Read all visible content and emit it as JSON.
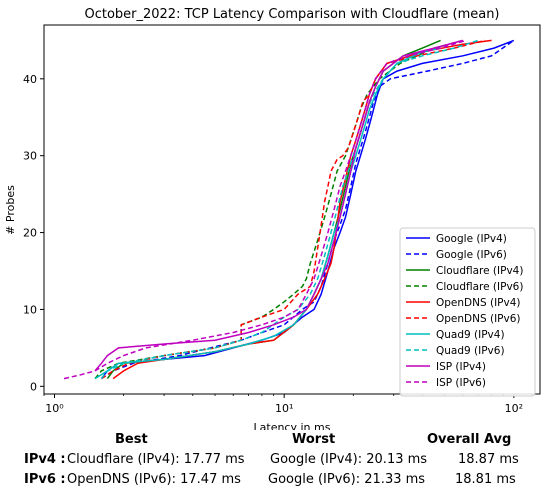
{
  "chart_data": {
    "type": "line",
    "title": "October_2022: TCP Latency Comparison with Cloudflare (mean)",
    "xlabel": "Latency in ms",
    "ylabel": "# Probes",
    "xscale": "log",
    "xlim": [
      0.9,
      130
    ],
    "ylim": [
      -1,
      47
    ],
    "x_ticks": [
      1,
      10,
      100
    ],
    "x_tick_labels": [
      "10⁰",
      "10¹",
      "10²"
    ],
    "y_ticks": [
      0,
      10,
      20,
      30,
      40
    ],
    "y_tick_labels": [
      "0",
      "10",
      "20",
      "30",
      "40"
    ],
    "grid": false,
    "legend_position": "lower-right",
    "series": [
      {
        "name": "Google (IPv4)",
        "color": "#0000ff",
        "dash": "solid",
        "points": [
          [
            1.6,
            1
          ],
          [
            1.7,
            2
          ],
          [
            1.9,
            3
          ],
          [
            3,
            3.5
          ],
          [
            4.5,
            4
          ],
          [
            6,
            5
          ],
          [
            8,
            6
          ],
          [
            10,
            7
          ],
          [
            12,
            9
          ],
          [
            13.5,
            10
          ],
          [
            14.5,
            12
          ],
          [
            15.5,
            15
          ],
          [
            16.5,
            18
          ],
          [
            17.5,
            20
          ],
          [
            18.5,
            22
          ],
          [
            19.5,
            25
          ],
          [
            20.5,
            28
          ],
          [
            21.5,
            30
          ],
          [
            22.5,
            32
          ],
          [
            23.5,
            34
          ],
          [
            24.5,
            36
          ],
          [
            25.5,
            38
          ],
          [
            27,
            40
          ],
          [
            31,
            41
          ],
          [
            40,
            42
          ],
          [
            60,
            43
          ],
          [
            82,
            44
          ],
          [
            100,
            45
          ]
        ]
      },
      {
        "name": "Google (IPv6)",
        "color": "#0000ff",
        "dash": "dashed",
        "points": [
          [
            1.6,
            1
          ],
          [
            1.8,
            2
          ],
          [
            2.2,
            3
          ],
          [
            3.5,
            4
          ],
          [
            6.5,
            6
          ],
          [
            8,
            7
          ],
          [
            10,
            8
          ],
          [
            12,
            10
          ],
          [
            13.5,
            11
          ],
          [
            14.5,
            13
          ],
          [
            15.5,
            16
          ],
          [
            16.5,
            19
          ],
          [
            17.5,
            21
          ],
          [
            18.5,
            23
          ],
          [
            19.5,
            26
          ],
          [
            20.5,
            29
          ],
          [
            21.5,
            31
          ],
          [
            22.5,
            33
          ],
          [
            23.5,
            35
          ],
          [
            24.5,
            37
          ],
          [
            26,
            39
          ],
          [
            29,
            40
          ],
          [
            42,
            41
          ],
          [
            60,
            42
          ],
          [
            80,
            43
          ],
          [
            100,
            45
          ]
        ]
      },
      {
        "name": "Cloudflare (IPv4)",
        "color": "#008000",
        "dash": "solid",
        "points": [
          [
            1.7,
            1
          ],
          [
            1.8,
            2
          ],
          [
            2,
            3
          ],
          [
            3,
            3.5
          ],
          [
            5,
            4.5
          ],
          [
            7,
            5.5
          ],
          [
            9,
            6
          ],
          [
            11,
            8
          ],
          [
            12.5,
            10
          ],
          [
            13.5,
            12
          ],
          [
            14.5,
            14
          ],
          [
            15.5,
            17
          ],
          [
            16.5,
            20
          ],
          [
            17.5,
            23
          ],
          [
            18.5,
            26
          ],
          [
            19.5,
            29
          ],
          [
            20.5,
            31
          ],
          [
            21.5,
            33
          ],
          [
            22.5,
            35
          ],
          [
            23.5,
            37
          ],
          [
            25,
            39
          ],
          [
            27,
            41
          ],
          [
            33,
            43
          ],
          [
            40,
            44
          ],
          [
            48,
            45
          ]
        ]
      },
      {
        "name": "Cloudflare (IPv6)",
        "color": "#008000",
        "dash": "dashed",
        "points": [
          [
            1.5,
            1
          ],
          [
            1.6,
            2
          ],
          [
            1.9,
            3
          ],
          [
            3,
            4
          ],
          [
            5,
            5
          ],
          [
            6.5,
            6
          ],
          [
            6.5,
            8
          ],
          [
            8,
            9
          ],
          [
            9,
            10
          ],
          [
            10,
            11
          ],
          [
            11,
            12
          ],
          [
            12,
            13
          ],
          [
            12.5,
            14
          ],
          [
            13,
            16
          ],
          [
            14,
            19
          ],
          [
            15,
            22
          ],
          [
            16,
            25
          ],
          [
            17,
            28
          ],
          [
            18.5,
            30
          ],
          [
            19.5,
            32
          ],
          [
            20.5,
            34
          ],
          [
            21.5,
            36
          ],
          [
            23,
            38
          ],
          [
            26,
            40
          ],
          [
            32,
            42
          ],
          [
            45,
            44
          ],
          [
            60,
            45
          ]
        ]
      },
      {
        "name": "OpenDNS (IPv4)",
        "color": "#ff0000",
        "dash": "solid",
        "points": [
          [
            1.8,
            1
          ],
          [
            2,
            2
          ],
          [
            2.3,
            3
          ],
          [
            3,
            3.5
          ],
          [
            5,
            4.5
          ],
          [
            7,
            5.5
          ],
          [
            9,
            6
          ],
          [
            11,
            8
          ],
          [
            12.5,
            10
          ],
          [
            14,
            12
          ],
          [
            15,
            14
          ],
          [
            16,
            16
          ],
          [
            16.5,
            18
          ],
          [
            17,
            21
          ],
          [
            17.5,
            24
          ],
          [
            18.5,
            27
          ],
          [
            19.5,
            30
          ],
          [
            20.5,
            32
          ],
          [
            21.5,
            34
          ],
          [
            22.5,
            36
          ],
          [
            23.5,
            38
          ],
          [
            25,
            40
          ],
          [
            28,
            42
          ],
          [
            40,
            43.5
          ],
          [
            60,
            44.5
          ],
          [
            80,
            45
          ]
        ]
      },
      {
        "name": "OpenDNS (IPv6)",
        "color": "#ff0000",
        "dash": "dashed",
        "points": [
          [
            1.6,
            1
          ],
          [
            1.8,
            2
          ],
          [
            2.1,
            3
          ],
          [
            3,
            4
          ],
          [
            5,
            5
          ],
          [
            6.5,
            6
          ],
          [
            6.5,
            8
          ],
          [
            8,
            9
          ],
          [
            10,
            10
          ],
          [
            11.5,
            12
          ],
          [
            13,
            13
          ],
          [
            13.5,
            15
          ],
          [
            14,
            18
          ],
          [
            14.5,
            21
          ],
          [
            15,
            24
          ],
          [
            15.5,
            26
          ],
          [
            16,
            28
          ],
          [
            17,
            29.5
          ],
          [
            18,
            30
          ],
          [
            19,
            31
          ],
          [
            20,
            33
          ],
          [
            21,
            35
          ],
          [
            22,
            37
          ],
          [
            23.5,
            38
          ],
          [
            25,
            40
          ],
          [
            28,
            42
          ],
          [
            38,
            43
          ],
          [
            55,
            44
          ],
          [
            75,
            45
          ]
        ]
      },
      {
        "name": "Quad9 (IPv4)",
        "color": "#00bfbf",
        "dash": "solid",
        "points": [
          [
            1.5,
            1
          ],
          [
            1.7,
            2
          ],
          [
            1.9,
            3
          ],
          [
            3,
            3.5
          ],
          [
            5,
            4.5
          ],
          [
            7,
            5.5
          ],
          [
            9,
            6.5
          ],
          [
            11,
            8
          ],
          [
            12.5,
            10
          ],
          [
            13.5,
            12
          ],
          [
            14.5,
            14
          ],
          [
            15.5,
            17
          ],
          [
            16.5,
            20
          ],
          [
            17.5,
            22
          ],
          [
            18.5,
            25
          ],
          [
            19.5,
            28
          ],
          [
            20.5,
            30
          ],
          [
            21.5,
            32
          ],
          [
            22.5,
            34
          ],
          [
            23.5,
            36
          ],
          [
            25,
            38
          ],
          [
            27,
            40
          ],
          [
            31,
            42
          ],
          [
            40,
            43.5
          ],
          [
            48,
            44
          ]
        ]
      },
      {
        "name": "Quad9 (IPv6)",
        "color": "#00bfbf",
        "dash": "dashed",
        "points": [
          [
            1.6,
            1
          ],
          [
            1.7,
            2
          ],
          [
            2,
            3
          ],
          [
            3,
            4
          ],
          [
            5,
            5
          ],
          [
            6.5,
            6
          ],
          [
            8,
            7
          ],
          [
            10,
            9
          ],
          [
            11.5,
            10
          ],
          [
            13,
            12
          ],
          [
            14,
            14
          ],
          [
            15,
            17
          ],
          [
            16,
            20
          ],
          [
            17,
            23
          ],
          [
            18,
            26
          ],
          [
            19,
            28
          ],
          [
            20,
            30
          ],
          [
            21,
            32
          ],
          [
            22,
            34
          ],
          [
            23,
            36
          ],
          [
            24.5,
            38
          ],
          [
            27,
            40
          ],
          [
            31,
            42
          ],
          [
            40,
            43
          ],
          [
            55,
            44
          ],
          [
            70,
            45
          ]
        ]
      },
      {
        "name": "ISP (IPv4)",
        "color": "#bf00bf",
        "dash": "solid",
        "points": [
          [
            1.5,
            2
          ],
          [
            1.6,
            3
          ],
          [
            1.7,
            4
          ],
          [
            1.9,
            5
          ],
          [
            3,
            5.5
          ],
          [
            5,
            6
          ],
          [
            7,
            7
          ],
          [
            9,
            8
          ],
          [
            11,
            9
          ],
          [
            12.5,
            10
          ],
          [
            13.5,
            12
          ],
          [
            14.5,
            14
          ],
          [
            15.5,
            16
          ],
          [
            16.5,
            19
          ],
          [
            17.5,
            22
          ],
          [
            18.5,
            25
          ],
          [
            19.5,
            28
          ],
          [
            20.5,
            31
          ],
          [
            21.5,
            33
          ],
          [
            22.5,
            35
          ],
          [
            23.5,
            37
          ],
          [
            25,
            39
          ],
          [
            27,
            41
          ],
          [
            33,
            43
          ],
          [
            45,
            44
          ],
          [
            60,
            45
          ]
        ]
      },
      {
        "name": "ISP (IPv6)",
        "color": "#bf00bf",
        "dash": "dashed",
        "points": [
          [
            1.1,
            1
          ],
          [
            1.3,
            1.5
          ],
          [
            1.5,
            2
          ],
          [
            1.7,
            3
          ],
          [
            2,
            4
          ],
          [
            2.5,
            5
          ],
          [
            4,
            6
          ],
          [
            6,
            7
          ],
          [
            8,
            8
          ],
          [
            10,
            9
          ],
          [
            11.5,
            10
          ],
          [
            12.5,
            12
          ],
          [
            13.5,
            14
          ],
          [
            14.5,
            17
          ],
          [
            15.5,
            20
          ],
          [
            16.5,
            23
          ],
          [
            17.5,
            26
          ],
          [
            18.5,
            28
          ],
          [
            19.5,
            30
          ],
          [
            20.5,
            32
          ],
          [
            21.5,
            34
          ],
          [
            22.5,
            36
          ],
          [
            23.5,
            38
          ],
          [
            25,
            40
          ],
          [
            28,
            42
          ],
          [
            35,
            43
          ],
          [
            48,
            44
          ],
          [
            62,
            45
          ]
        ]
      }
    ]
  },
  "stats": {
    "headers": {
      "best": "Best",
      "worst": "Worst",
      "avg": "Overall Avg"
    },
    "ipv4": {
      "label": "IPv4 :",
      "best": "Cloudflare (IPv4): 17.77 ms",
      "worst": "Google (IPv4): 20.13 ms",
      "avg": "18.87 ms"
    },
    "ipv6": {
      "label": "IPv6 :",
      "best": "OpenDNS (IPv6): 17.47 ms",
      "worst": "Google (IPv6): 21.33 ms",
      "avg": "18.81 ms"
    }
  }
}
